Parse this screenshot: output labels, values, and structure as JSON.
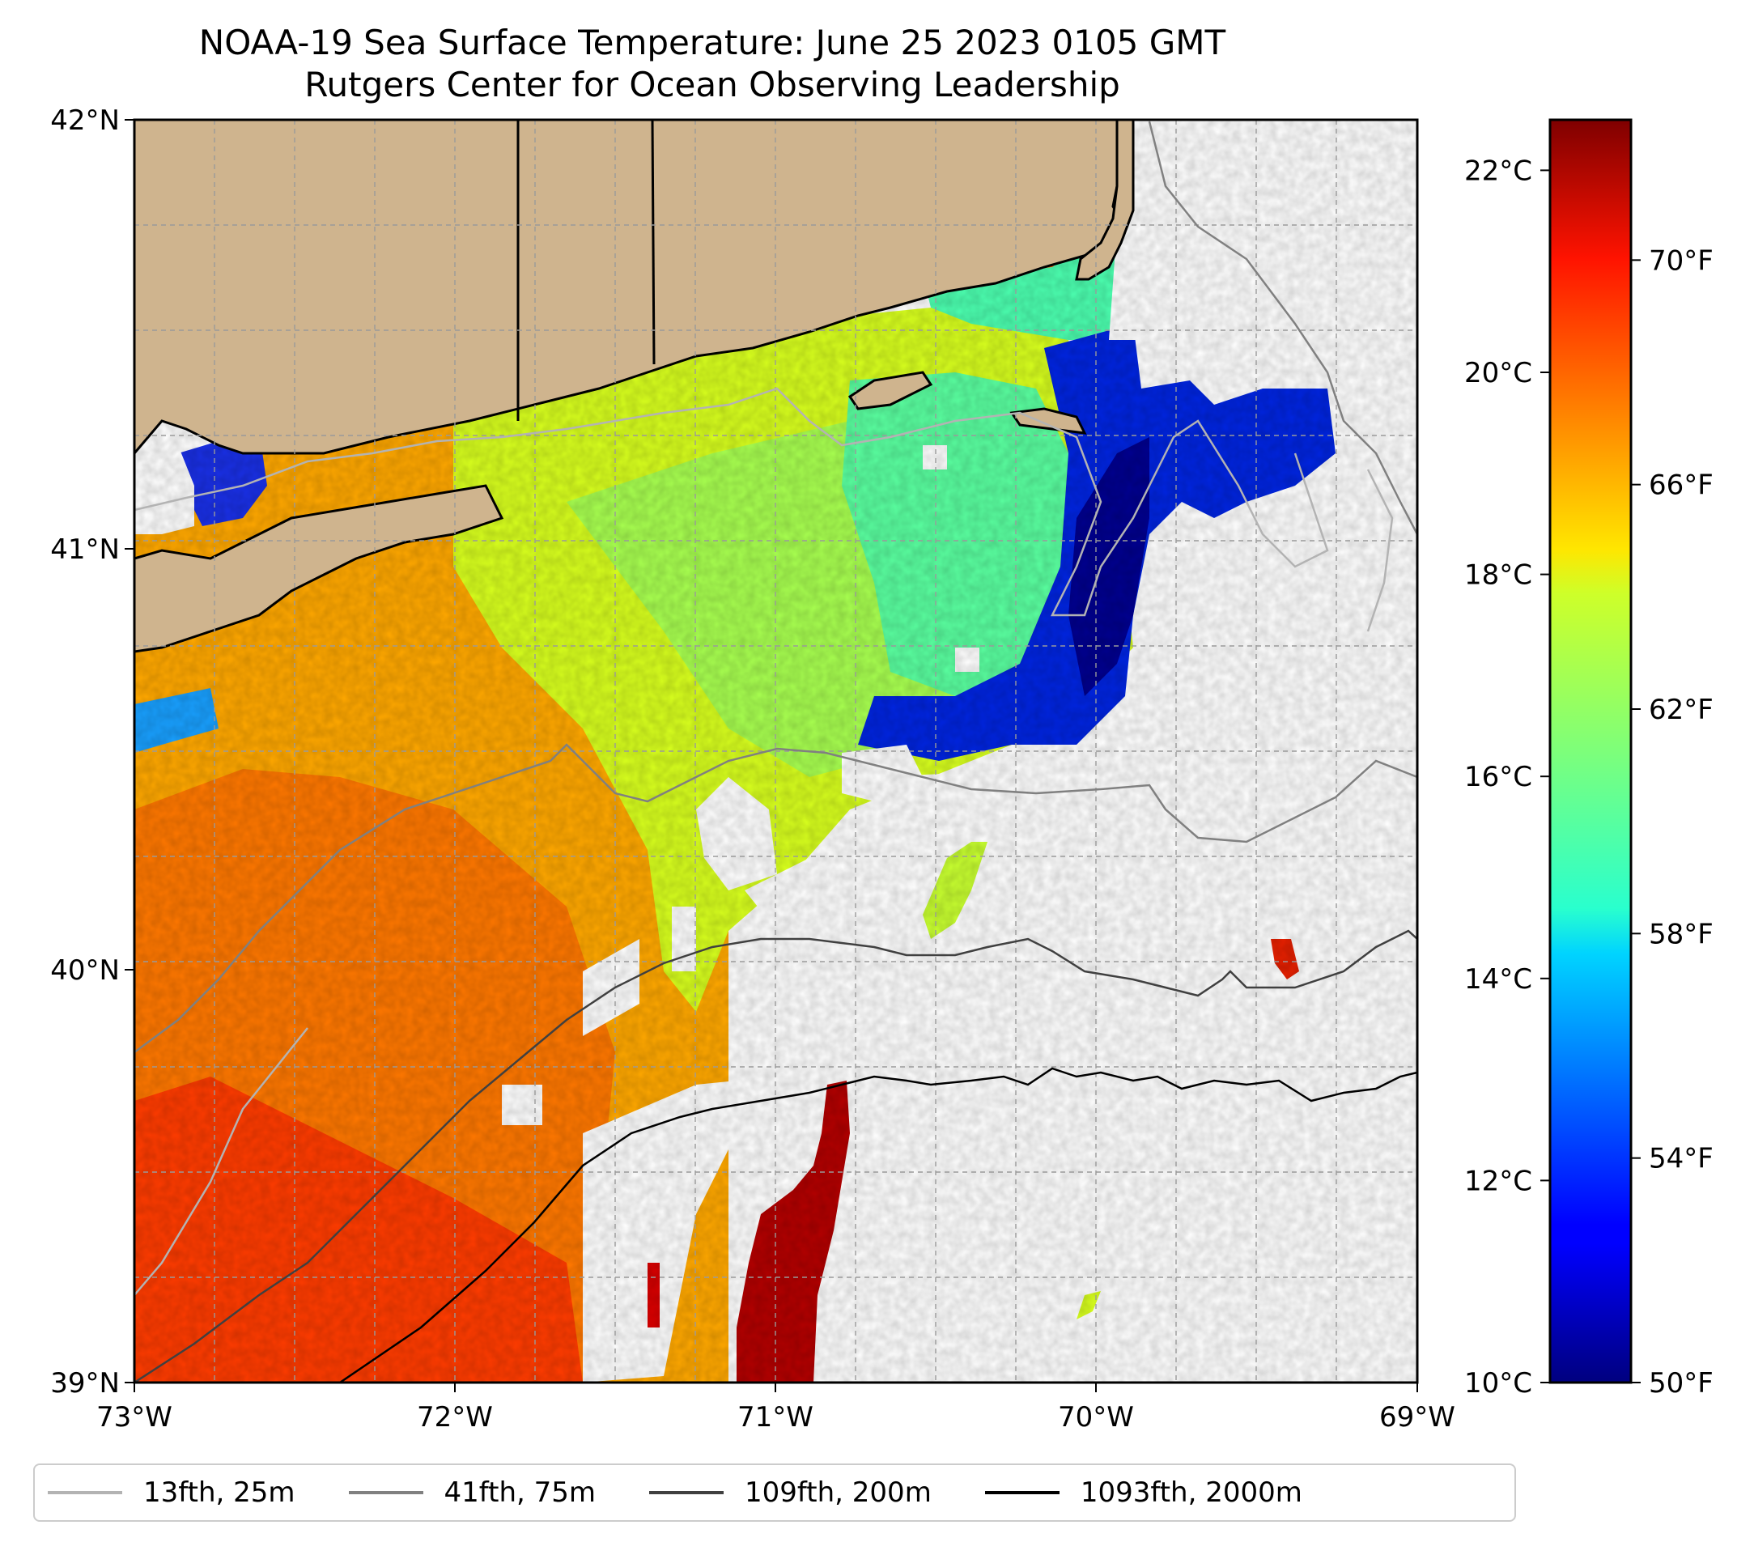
{
  "title": {
    "line1": "NOAA-19 Sea Surface Temperature: June 25 2023 0105 GMT",
    "line2": "Rutgers Center for Ocean Observing Leadership"
  },
  "map": {
    "lat_labels": [
      "42°N",
      "41°N",
      "40°N",
      "39°N"
    ],
    "lon_labels": [
      "73°W",
      "72°W",
      "71°W",
      "70°W",
      "69°W"
    ],
    "land_color": "#cfb48e"
  },
  "chart_data": {
    "type": "heatmap",
    "title": "NOAA-19 Sea Surface Temperature: June 25 2023 0105 GMT",
    "extent": {
      "lon": [
        -73,
        -69
      ],
      "lat": [
        39,
        42
      ]
    },
    "colormap": "jet",
    "colorbar": {
      "celsius_range": [
        10,
        22.5
      ],
      "celsius_ticks": [
        10,
        12,
        14,
        16,
        18,
        20,
        22
      ],
      "celsius_labels": [
        "10°C",
        "12°C",
        "14°C",
        "16°C",
        "18°C",
        "20°C",
        "22°C"
      ],
      "fahrenheit_ticks": [
        50,
        54,
        58,
        62,
        66,
        70
      ],
      "fahrenheit_labels": [
        "50°F",
        "54°F",
        "58°F",
        "62°F",
        "66°F",
        "70°F"
      ]
    },
    "legend": {
      "placement": "bottom",
      "entries": [
        {
          "label": "13fth, 25m",
          "color": "#b3b3b3"
        },
        {
          "label": "41fth, 75m",
          "color": "#808080"
        },
        {
          "label": "109fth, 200m",
          "color": "#404040"
        },
        {
          "label": "1093fth, 2000m",
          "color": "#000000"
        }
      ]
    }
  }
}
